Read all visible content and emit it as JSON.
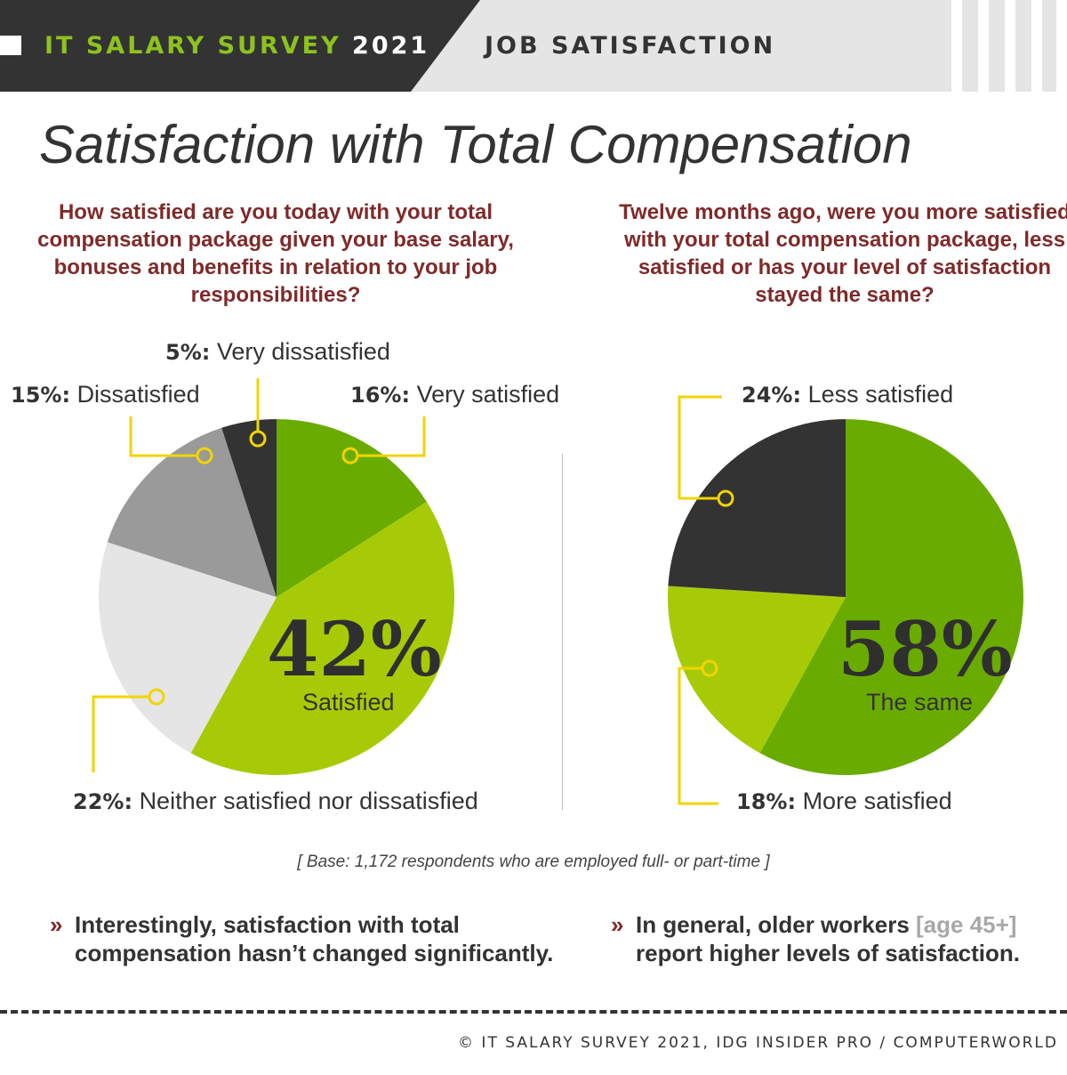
{
  "header": {
    "left_part1": "IT SALARY SURVEY",
    "left_part2": "2021",
    "right": "JOB SATISFACTION"
  },
  "title": "Satisfaction with Total Compensation",
  "colors": {
    "dark_green": "#6aab00",
    "lime": "#a6cb06",
    "light_gray": "#e5e5e5",
    "mid_gray": "#9a9a9a",
    "charcoal": "#333333",
    "callout_yellow": "#f2d400",
    "question_red": "#7f2a2a"
  },
  "questions": {
    "left": "How satisfied are you today with your total compensation package given your base salary, bonuses and benefits in relation to your job responsibilities?",
    "right": "Twelve months ago, were you more satisfied with your total compensation package, less satisfied or has your level of satisfaction stayed the same?"
  },
  "chart_data": [
    {
      "type": "pie",
      "series": [
        {
          "name": "Very satisfied",
          "value": 16,
          "pct_label": "16%:",
          "color": "#6aab00"
        },
        {
          "name": "Satisfied",
          "value": 42,
          "pct_label": "42%",
          "color": "#a6cb06"
        },
        {
          "name": "Neither satisfied nor dissatisfied",
          "value": 22,
          "pct_label": "22%:",
          "color": "#e5e5e5"
        },
        {
          "name": "Dissatisfied",
          "value": 15,
          "pct_label": "15%:",
          "color": "#9a9a9a"
        },
        {
          "name": "Very dissatisfied",
          "value": 5,
          "pct_label": "5%:",
          "color": "#333333"
        }
      ]
    },
    {
      "type": "pie",
      "series": [
        {
          "name": "The same",
          "value": 58,
          "pct_label": "58%",
          "color": "#6aab00"
        },
        {
          "name": "More satisfied",
          "value": 18,
          "pct_label": "18%:",
          "color": "#a6cb06"
        },
        {
          "name": "Less satisfied",
          "value": 24,
          "pct_label": "24%:",
          "color": "#333333"
        }
      ]
    }
  ],
  "base_note": "[ Base: 1,172 respondents who are employed full- or part-time ]",
  "findings": {
    "marker": "»",
    "left": "Interestingly, satisfaction with total compensation hasn’t changed significantly.",
    "right_a": "In general, older workers",
    "right_b": "[age 45+]",
    "right_c": "report higher levels of satisfaction."
  },
  "footer": "© IT SALARY SURVEY 2021, IDG INSIDER PRO / COMPUTERWORLD"
}
